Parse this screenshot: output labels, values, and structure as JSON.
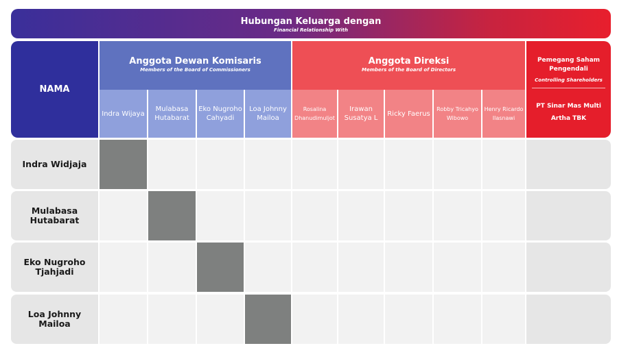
{
  "title": {
    "main": "Hubungan Keluarga dengan",
    "sub": "Financial Relationship With"
  },
  "name_header": "NAMA",
  "commissioners": {
    "title": "Anggota Dewan Komisaris",
    "subtitle": "Members of the Board of Commissioners",
    "columns": [
      "Indra Wijaya",
      "Mulabasa Hutabarat",
      "Eko Nugroho Cahyadi",
      "Loa Johnny Mailoa"
    ]
  },
  "directors": {
    "title": "Anggota Direksi",
    "subtitle": "Members of the Board of Directors",
    "columns": [
      "Rosalina Dhanudimuljot",
      "Irawan Susatya L",
      "Ricky Faerus",
      "Robby Tricahyo Wibowo",
      "Henry Ricardo Ilasnawi"
    ]
  },
  "shareholders": {
    "title": "Pemegang Saham Pengendali",
    "subtitle": "Controlling Shareholders",
    "name": "PT Sinar Mas Multi Artha TBK"
  },
  "rows": [
    {
      "name": "Indra Widjaja",
      "filled_column": 0
    },
    {
      "name": "Mulabasa Hutabarat",
      "filled_column": 1
    },
    {
      "name": "Eko Nugroho Tjahjadi",
      "filled_column": 2
    },
    {
      "name": "Loa Johnny Mailoa",
      "filled_column": 3
    }
  ],
  "colors": {
    "filled": "#7e807f",
    "empty": "#f2f2f2",
    "commissioner_header": "#5f72bf",
    "director_header": "#ee4f55",
    "shareholder_header": "#e51e2b",
    "name_header": "#2f2f9c"
  }
}
